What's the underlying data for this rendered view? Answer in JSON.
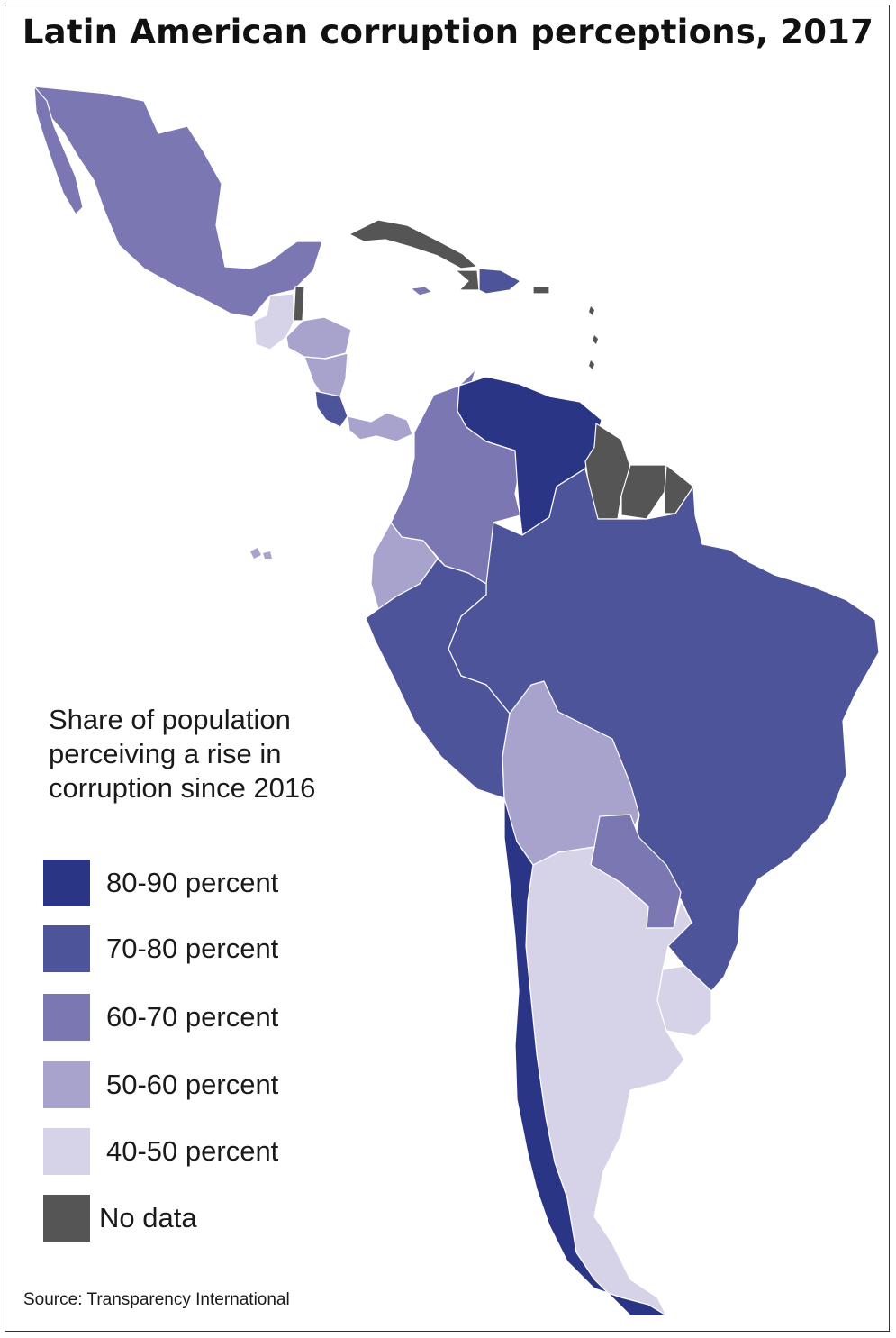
{
  "title": "Latin American corruption perceptions, 2017",
  "legend": {
    "title": "Share of population perceiving a rise in corruption since 2016",
    "items": [
      {
        "label": "80-90 percent",
        "color": "#2b3585"
      },
      {
        "label": "70-80 percent",
        "color": "#4e5499"
      },
      {
        "label": "60-70 percent",
        "color": "#7a77b2"
      },
      {
        "label": "50-60 percent",
        "color": "#a7a3cd"
      },
      {
        "label": "40-50 percent",
        "color": "#d6d3e9"
      },
      {
        "label": "No data",
        "color": "#555555"
      }
    ]
  },
  "source": "Source: Transparency International"
}
